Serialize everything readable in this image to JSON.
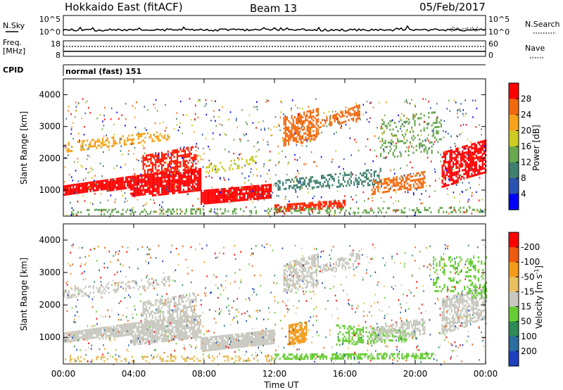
{
  "header": {
    "station": "Hokkaido East (fitACF)",
    "beam": "Beam 13",
    "date": "05/Feb/2017"
  },
  "panels": {
    "nsky_label": "N.Sky",
    "nsearch_label": "N.Search",
    "nsky_ticks": [
      "10^5",
      "10^0"
    ],
    "nsearch_ticks": [
      "10^5",
      "10^0"
    ],
    "freq_label_line1": "Freq.",
    "freq_label_line2": "[MHz]",
    "freq_ticks": [
      "18",
      "8"
    ],
    "nave_label": "Nave",
    "nave_ticks": [
      "60",
      "0"
    ],
    "cpid_label": "CPID",
    "cpid_value": "normal (fast) 151"
  },
  "chart_data": [
    {
      "type": "heatmap",
      "name_key": "power",
      "xlabel": "Time UT",
      "ylabel": "Slant Range [km]",
      "x_ticks": [
        "00:00",
        "04:00",
        "08:00",
        "12:00",
        "16:00",
        "20:00",
        "00:00"
      ],
      "x_hours": [
        0,
        4,
        8,
        12,
        16,
        20,
        24
      ],
      "xlim": [
        0,
        24
      ],
      "ylim": [
        180,
        4500
      ],
      "y_ticks": [
        1000,
        2000,
        3000,
        4000
      ],
      "colorbar_label": "Power [dB]",
      "colorbar_ticks": [
        "4",
        "8",
        "12",
        "16",
        "20",
        "24",
        "28"
      ],
      "colorbar_colors": [
        "#0000ff",
        "#2a52b0",
        "#3f7f6e",
        "#6aa84f",
        "#cccc22",
        "#f6a21c",
        "#f26a10",
        "#ff0000"
      ]
    },
    {
      "type": "heatmap",
      "name_key": "velocity",
      "xlabel": "Time UT",
      "ylabel": "Slant Range [km]",
      "x_ticks": [
        "00:00",
        "04:00",
        "08:00",
        "12:00",
        "16:00",
        "20:00",
        "00:00"
      ],
      "x_hours": [
        0,
        4,
        8,
        12,
        16,
        20,
        24
      ],
      "xlim": [
        0,
        24
      ],
      "ylim": [
        180,
        4500
      ],
      "y_ticks": [
        1000,
        2000,
        3000,
        4000
      ],
      "colorbar_label": "Velocity [m s",
      "colorbar_label_sup": "-1",
      "colorbar_label_end": "]",
      "colorbar_ticks": [
        "200",
        "100",
        "50",
        "15",
        "-15",
        "-50",
        "-100",
        "-200"
      ],
      "colorbar_colors": [
        "#1f3fbf",
        "#2c6ea0",
        "#2e8b57",
        "#66cc33",
        "#c8c8c0",
        "#e8c060",
        "#f39b1a",
        "#ef5a10",
        "#ff0000"
      ]
    }
  ],
  "bands": {
    "power": [
      {
        "x0": 0.0,
        "x1": 3.8,
        "ya": 1150,
        "yb": 1450,
        "yc": 850,
        "yd": 1100,
        "color": "#ff0000",
        "density": 0.9
      },
      {
        "x0": 3.8,
        "x1": 7.8,
        "ya": 1450,
        "yb": 1700,
        "yc": 800,
        "yd": 1000,
        "color": "#ff0000",
        "density": 0.85
      },
      {
        "x0": 7.8,
        "x1": 11.8,
        "ya": 1000,
        "yb": 1200,
        "yc": 600,
        "yd": 800,
        "color": "#ff0000",
        "density": 0.9
      },
      {
        "x0": 4.5,
        "x1": 7.5,
        "ya": 2100,
        "yb": 2400,
        "yc": 1500,
        "yd": 1700,
        "color": "#ff1a00",
        "density": 0.6
      },
      {
        "x0": 0.0,
        "x1": 6.0,
        "ya": 2500,
        "yb": 2900,
        "yc": 2200,
        "yd": 2600,
        "color": "#f6a21c",
        "density": 0.35
      },
      {
        "x0": 12.5,
        "x1": 14.5,
        "ya": 3300,
        "yb": 3600,
        "yc": 2400,
        "yd": 2600,
        "color": "#f26a10",
        "density": 0.6
      },
      {
        "x0": 14.5,
        "x1": 16.8,
        "ya": 3200,
        "yb": 3700,
        "yc": 3000,
        "yd": 3200,
        "color": "#f26a10",
        "density": 0.55
      },
      {
        "x0": 17.5,
        "x1": 20.5,
        "ya": 1300,
        "yb": 1600,
        "yc": 900,
        "yd": 1100,
        "color": "#f26a10",
        "density": 0.6
      },
      {
        "x0": 21.5,
        "x1": 24.0,
        "ya": 2200,
        "yb": 2600,
        "yc": 1100,
        "yd": 1600,
        "color": "#ff0000",
        "density": 0.7
      },
      {
        "x0": 12.0,
        "x1": 18.0,
        "ya": 1300,
        "yb": 1700,
        "yc": 1000,
        "yd": 1200,
        "color": "#3f7f6e",
        "density": 0.35
      },
      {
        "x0": 12.0,
        "x1": 16.0,
        "ya": 550,
        "yb": 700,
        "yc": 350,
        "yd": 500,
        "color": "#ff2200",
        "density": 0.7
      },
      {
        "x0": 0.0,
        "x1": 24.0,
        "ya": 400,
        "yb": 480,
        "yc": 250,
        "yd": 320,
        "color": "#6aa84f",
        "density": 0.25
      },
      {
        "x0": 8.0,
        "x1": 11.0,
        "ya": 1800,
        "yb": 2100,
        "yc": 1500,
        "yd": 1800,
        "color": "#cccc22",
        "density": 0.3
      },
      {
        "x0": 18.0,
        "x1": 21.5,
        "ya": 3300,
        "yb": 3500,
        "yc": 2000,
        "yd": 2200,
        "color": "#6aa84f",
        "density": 0.2
      }
    ],
    "velocity": [
      {
        "x0": 0.0,
        "x1": 3.8,
        "ya": 1150,
        "yb": 1450,
        "yc": 850,
        "yd": 1100,
        "color": "#c8c8c0",
        "density": 0.9
      },
      {
        "x0": 3.8,
        "x1": 7.8,
        "ya": 1450,
        "yb": 1700,
        "yc": 800,
        "yd": 1000,
        "color": "#c8c8c0",
        "density": 0.85
      },
      {
        "x0": 7.8,
        "x1": 12.0,
        "ya": 1000,
        "yb": 1250,
        "yc": 600,
        "yd": 800,
        "color": "#c8c8c0",
        "density": 0.9
      },
      {
        "x0": 4.5,
        "x1": 7.5,
        "ya": 2100,
        "yb": 2400,
        "yc": 1500,
        "yd": 1700,
        "color": "#c8c8c0",
        "density": 0.55
      },
      {
        "x0": 0.0,
        "x1": 6.0,
        "ya": 2500,
        "yb": 2900,
        "yc": 2200,
        "yd": 2600,
        "color": "#c8c8c0",
        "density": 0.35
      },
      {
        "x0": 12.5,
        "x1": 14.5,
        "ya": 3300,
        "yb": 3600,
        "yc": 2400,
        "yd": 2600,
        "color": "#c8c8c0",
        "density": 0.55
      },
      {
        "x0": 14.5,
        "x1": 16.8,
        "ya": 3200,
        "yb": 3700,
        "yc": 3000,
        "yd": 3200,
        "color": "#c8c8c0",
        "density": 0.5
      },
      {
        "x0": 12.8,
        "x1": 13.8,
        "ya": 1400,
        "yb": 1500,
        "yc": 750,
        "yd": 850,
        "color": "#f39b1a",
        "density": 0.8
      },
      {
        "x0": 15.5,
        "x1": 20.0,
        "ya": 1400,
        "yb": 1200,
        "yc": 800,
        "yd": 900,
        "color": "#66cc33",
        "density": 0.4
      },
      {
        "x0": 17.5,
        "x1": 20.5,
        "ya": 1300,
        "yb": 1600,
        "yc": 900,
        "yd": 1100,
        "color": "#c8c8c0",
        "density": 0.55
      },
      {
        "x0": 21.5,
        "x1": 24.0,
        "ya": 2200,
        "yb": 2600,
        "yc": 1100,
        "yd": 1600,
        "color": "#c8c8c0",
        "density": 0.65
      },
      {
        "x0": 21.0,
        "x1": 24.0,
        "ya": 3500,
        "yb": 3500,
        "yc": 2400,
        "yd": 2200,
        "color": "#66cc33",
        "density": 0.25
      },
      {
        "x0": 12.0,
        "x1": 21.0,
        "ya": 500,
        "yb": 520,
        "yc": 350,
        "yd": 380,
        "color": "#66cc33",
        "density": 0.6
      },
      {
        "x0": 0.0,
        "x1": 12.0,
        "ya": 420,
        "yb": 450,
        "yc": 260,
        "yd": 280,
        "color": "#e8c060",
        "density": 0.3
      }
    ]
  }
}
